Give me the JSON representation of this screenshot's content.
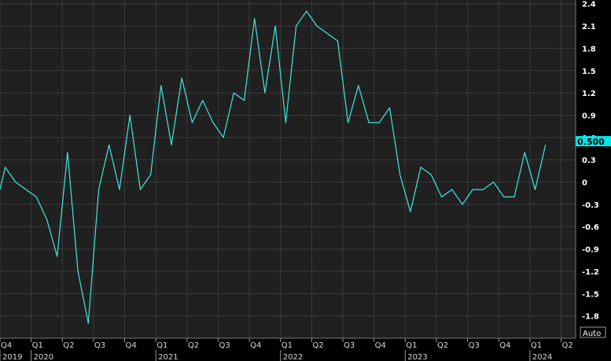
{
  "chart_data": {
    "type": "line",
    "y_ticks": [
      2.4,
      2.1,
      1.8,
      1.5,
      1.2,
      0.9,
      0.6,
      0.3,
      0,
      -0.3,
      -0.6,
      -0.9,
      -1.2,
      -1.5,
      -1.8
    ],
    "y_tick_labels": [
      "2.4",
      "2.1",
      "1.8",
      "1.5",
      "1.2",
      "0.9",
      "0.6",
      "0.3",
      "0",
      "-0.3",
      "-0.6",
      "-0.9",
      "-1.2",
      "-1.5",
      "-1.8"
    ],
    "ylim": [
      -2.1,
      2.45
    ],
    "x_range_months": [
      0,
      55.4
    ],
    "quarter_ticks": [
      {
        "label": "Q4",
        "m": 0
      },
      {
        "label": "Q1",
        "m": 3
      },
      {
        "label": "Q2",
        "m": 6
      },
      {
        "label": "Q3",
        "m": 9
      },
      {
        "label": "Q4",
        "m": 12
      },
      {
        "label": "Q1",
        "m": 15
      },
      {
        "label": "Q2",
        "m": 18
      },
      {
        "label": "Q3",
        "m": 21
      },
      {
        "label": "Q4",
        "m": 24
      },
      {
        "label": "Q1",
        "m": 27
      },
      {
        "label": "Q2",
        "m": 30
      },
      {
        "label": "Q3",
        "m": 33
      },
      {
        "label": "Q4",
        "m": 36
      },
      {
        "label": "Q1",
        "m": 39
      },
      {
        "label": "Q2",
        "m": 42
      },
      {
        "label": "Q3",
        "m": 45
      },
      {
        "label": "Q4",
        "m": 48
      },
      {
        "label": "Q1",
        "m": 51
      },
      {
        "label": "Q2",
        "m": 54
      }
    ],
    "year_ticks": [
      {
        "label": "2019",
        "m": 0
      },
      {
        "label": "2020",
        "m": 3
      },
      {
        "label": "2021",
        "m": 15
      },
      {
        "label": "2022",
        "m": 27
      },
      {
        "label": "2023",
        "m": 39
      },
      {
        "label": "2024",
        "m": 51
      }
    ],
    "series": [
      {
        "color": "#3ee8e2",
        "x": [
          0,
          0.5,
          1.5,
          2.5,
          3.5,
          4.5,
          5.5,
          6.5,
          7.5,
          8.5,
          9.5,
          10.5,
          11.5,
          12.5,
          13.5,
          14.5,
          15.5,
          16.5,
          17.5,
          18.5,
          19.5,
          20.5,
          21.5,
          22.5,
          23.5,
          24.5,
          25.5,
          26.5,
          27.5,
          28.5,
          29.5,
          30.5,
          31.5,
          32.5,
          33.5,
          34.5,
          35.5,
          36.5,
          37.5,
          38.5,
          39.5,
          40.5,
          41.5,
          42.5,
          43.5,
          44.5,
          45.5,
          46.5,
          47.5,
          48.5,
          49.5,
          50.5,
          51.5,
          52.5
        ],
        "values": [
          -0.1,
          0.2,
          0.0,
          -0.1,
          -0.2,
          -0.5,
          -1.0,
          0.4,
          -1.2,
          -1.9,
          -0.1,
          0.5,
          -0.1,
          0.9,
          -0.1,
          0.1,
          1.3,
          0.5,
          1.4,
          0.8,
          1.1,
          0.8,
          0.6,
          1.2,
          1.1,
          2.2,
          1.2,
          2.1,
          0.8,
          2.1,
          2.3,
          2.1,
          2.0,
          1.9,
          0.8,
          1.3,
          0.8,
          0.8,
          1.0,
          0.1,
          -0.4,
          0.2,
          0.1,
          -0.2,
          -0.1,
          -0.3,
          -0.1,
          -0.1,
          0.0,
          -0.2,
          -0.2,
          0.4,
          -0.1,
          0.5
        ]
      }
    ],
    "last_value_label": "0.500",
    "auto_label": "Auto",
    "colors": {
      "background": "#000000",
      "plot_background": "#202020",
      "grid": "#3a3a3a",
      "line": "#3ee8e2",
      "last_value_bg": "#00e5e5"
    }
  }
}
